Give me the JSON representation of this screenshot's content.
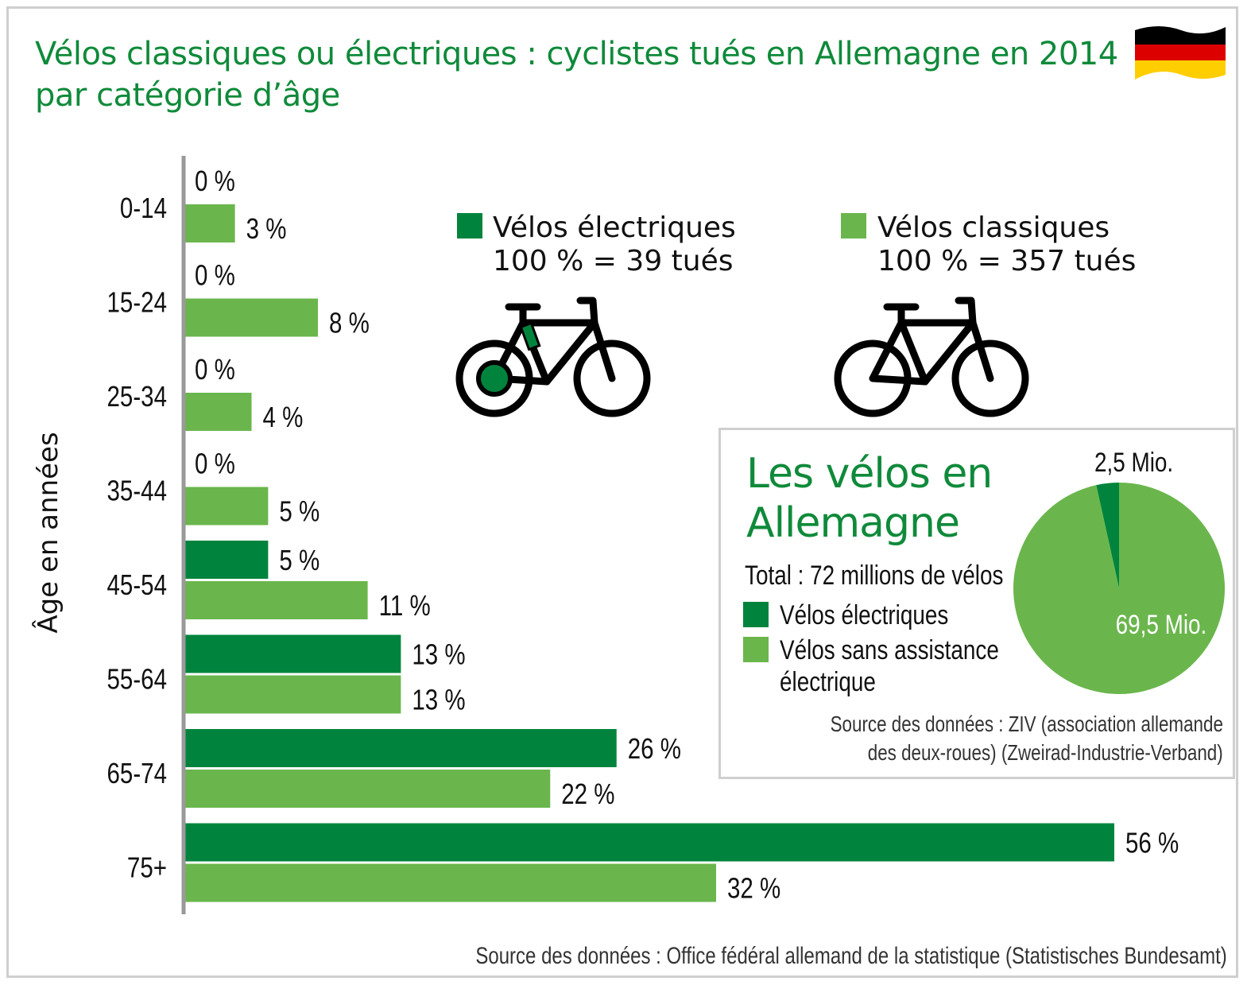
{
  "title": {
    "line1": "Vélos classiques ou électriques : cyclistes tués en Allemagne en 2014",
    "line2": "par catégorie d’âge"
  },
  "colors": {
    "electric": "#00843d",
    "classic": "#6ab64c",
    "title_green": "#0f8a3a",
    "axis": "#999999"
  },
  "legend": {
    "electric": {
      "line1": "Vélos électriques",
      "line2": "100 % = 39 tués",
      "icon": "electric-bike-icon"
    },
    "classic": {
      "line1": "Vélos classiques",
      "line2": "100 % = 357 tués",
      "icon": "bike-icon"
    }
  },
  "chart_data": {
    "type": "bar",
    "orientation": "horizontal",
    "ylabel": "Âge en années",
    "categories": [
      "0-14",
      "15-24",
      "25-34",
      "35-44",
      "45-54",
      "55-64",
      "65-74",
      "75+"
    ],
    "series": [
      {
        "name": "Vélos électriques",
        "values": [
          0,
          0,
          0,
          0,
          5,
          13,
          26,
          56
        ],
        "labels": [
          "0 %",
          "0 %",
          "0 %",
          "0 %",
          "5 %",
          "13 %",
          "26 %",
          "56 %"
        ]
      },
      {
        "name": "Vélos classiques",
        "values": [
          3,
          8,
          4,
          5,
          11,
          13,
          22,
          32
        ],
        "labels": [
          "3 %",
          "8 %",
          "4 %",
          "5 %",
          "11 %",
          "13 %",
          "22 %",
          "32 %"
        ]
      }
    ],
    "unit": "%",
    "xlim": [
      0,
      60
    ]
  },
  "inset": {
    "title_line1": "Les vélos en",
    "title_line2": "Allemagne",
    "total": "Total : 72 millions de vélos",
    "legend_electric": "Vélos électriques",
    "legend_classic_line1": "Vélos sans assistance",
    "legend_classic_line2": "électrique",
    "pie": {
      "type": "pie",
      "slices": [
        {
          "name": "Vélos électriques",
          "value": 2.5,
          "label": "2,5 Mio."
        },
        {
          "name": "Vélos sans assistance électrique",
          "value": 69.5,
          "label": "69,5 Mio."
        }
      ]
    },
    "source_line1": "Source des données : ZIV (association allemande",
    "source_line2": "des deux-roues) (Zweirad-Industrie-Verband)"
  },
  "source": "Source des données : Office fédéral allemand de la statistique (Statistisches Bundesamt)",
  "flag": {
    "icon": "germany-flag-icon",
    "colors": [
      "#000000",
      "#dd0000",
      "#ffce00"
    ]
  }
}
